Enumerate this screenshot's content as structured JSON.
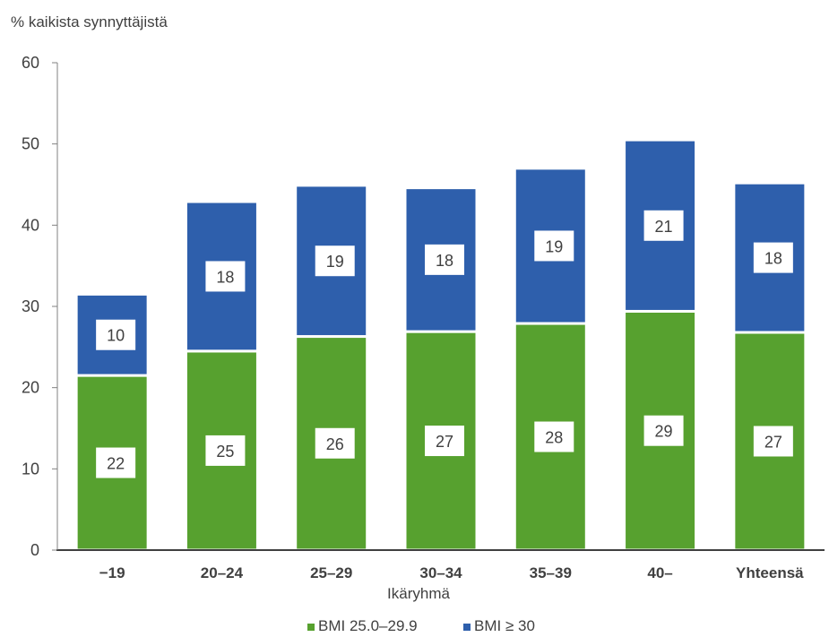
{
  "chart_data": {
    "type": "bar",
    "stacked": true,
    "ylabel": "% kaikista synnyttäjistä",
    "xlabel": "Ikäryhmä",
    "categories": [
      "−19",
      "20–24",
      "25–29",
      "30–34",
      "35–39",
      "40–",
      "Yhteensä"
    ],
    "ylim": [
      0,
      60
    ],
    "yticks": [
      0,
      10,
      20,
      30,
      40,
      50,
      60
    ],
    "grid": false,
    "legend_position": "bottom",
    "series": [
      {
        "name": "BMI 25.0–29.9",
        "color": "#57A12F",
        "values": [
          21.5,
          24.5,
          26.3,
          26.9,
          27.9,
          29.4,
          26.8
        ],
        "labels": [
          "22",
          "25",
          "26",
          "27",
          "28",
          "29",
          "27"
        ]
      },
      {
        "name": "BMI ≥ 30",
        "color": "#2E5FAC",
        "values": [
          10.0,
          18.4,
          18.6,
          17.7,
          19.1,
          21.1,
          18.4
        ],
        "labels": [
          "10",
          "18",
          "19",
          "18",
          "19",
          "21",
          "18"
        ]
      }
    ]
  }
}
